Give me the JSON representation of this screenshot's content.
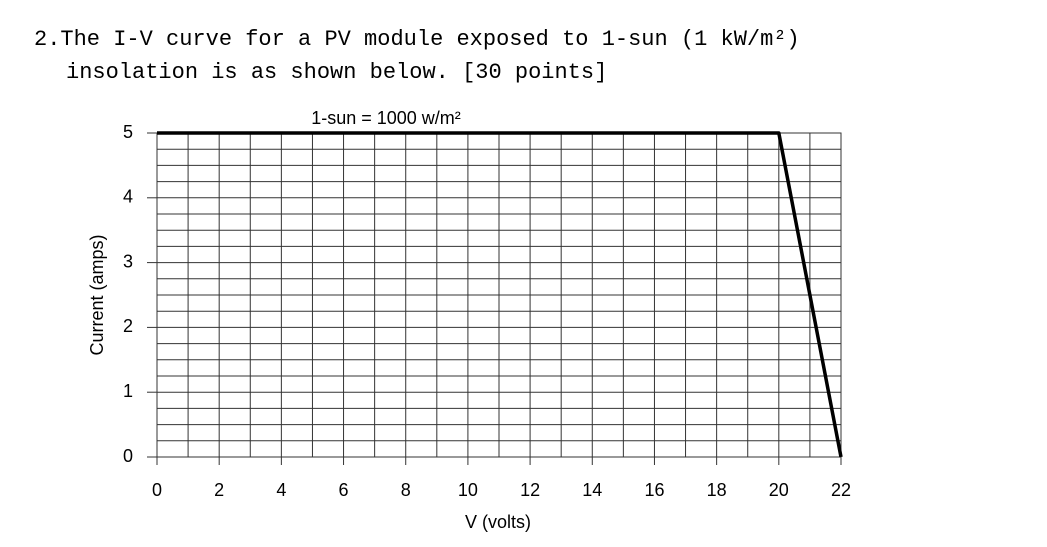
{
  "question": {
    "lines": [
      "2.The I-V curve for a PV module exposed to 1-sun (1 kW/m²)",
      "insolation is as shown below. [30 points]"
    ]
  },
  "chart_data": {
    "type": "line",
    "title": "1-sun = 1000 w/m²",
    "x_label": "V (volts)",
    "y_label": "Current (amps)",
    "x": [
      0,
      20,
      22
    ],
    "values": [
      5,
      5,
      0
    ],
    "color": "#000000",
    "xlim": [
      0,
      22
    ],
    "ylim": [
      0,
      5
    ],
    "xticks": [
      0,
      2,
      4,
      6,
      8,
      10,
      12,
      14,
      16,
      18,
      20,
      22
    ],
    "yticks": [
      0,
      1,
      2,
      3,
      4,
      5
    ],
    "grid": true,
    "x_grid_step": 1,
    "y_grid_step": 0.25
  }
}
